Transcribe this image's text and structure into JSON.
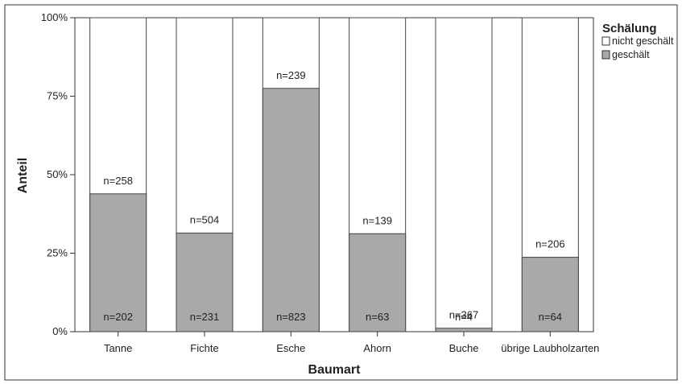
{
  "chart_data": {
    "type": "bar",
    "stacked": "100%",
    "title": "",
    "xlabel": "Baumart",
    "ylabel": "Anteil",
    "ylim": [
      0,
      100
    ],
    "yticks": [
      0,
      25,
      50,
      75,
      100
    ],
    "ytick_labels": [
      "0%",
      "25%",
      "50%",
      "75%",
      "100%"
    ],
    "categories": [
      "Tanne",
      "Fichte",
      "Esche",
      "Ahorn",
      "Buche",
      "übrige Laubholzarten"
    ],
    "series": [
      {
        "name": "geschält",
        "values": [
          43.9,
          31.4,
          77.5,
          31.2,
          1.1,
          23.7
        ],
        "counts": [
          "n=202",
          "n=231",
          "n=823",
          "n=63",
          "n=4",
          "n=64"
        ],
        "color": "#a9a9a9"
      },
      {
        "name": "nicht geschält",
        "values": [
          56.1,
          68.6,
          22.5,
          68.8,
          98.9,
          76.3
        ],
        "counts": [
          "n=258",
          "n=504",
          "n=239",
          "n=139",
          "n=367",
          "n=206"
        ],
        "color": "#ffffff"
      }
    ],
    "legend": {
      "title": "Schälung",
      "placement": "top-right",
      "entries": [
        "nicht geschält",
        "geschält"
      ]
    },
    "grid": false
  }
}
